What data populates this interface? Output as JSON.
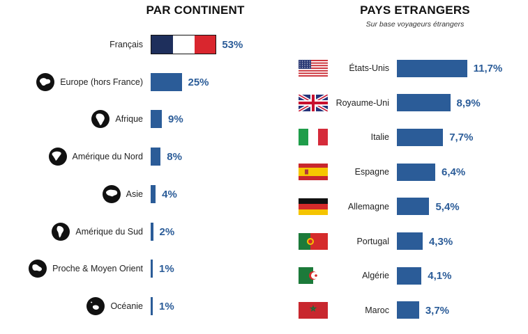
{
  "left": {
    "title": "PAR CONTINENT",
    "rows": [
      {
        "label": "Français",
        "value": 53,
        "value_text": "53%",
        "icon": "france-flag"
      },
      {
        "label": "Europe (hors France)",
        "value": 25,
        "value_text": "25%",
        "icon": "globe-europe-icon"
      },
      {
        "label": "Afrique",
        "value": 9,
        "value_text": "9%",
        "icon": "globe-africa-icon"
      },
      {
        "label": "Amérique du Nord",
        "value": 8,
        "value_text": "8%",
        "icon": "globe-north-america-icon"
      },
      {
        "label": "Asie",
        "value": 4,
        "value_text": "4%",
        "icon": "globe-asia-icon"
      },
      {
        "label": "Amérique du Sud",
        "value": 2,
        "value_text": "2%",
        "icon": "globe-south-america-icon"
      },
      {
        "label": "Proche & Moyen Orient",
        "value": 1,
        "value_text": "1%",
        "icon": "globe-middle-east-icon"
      },
      {
        "label": "Océanie",
        "value": 1,
        "value_text": "1%",
        "icon": "globe-oceania-icon"
      }
    ]
  },
  "right": {
    "title": "PAYS ETRANGERS",
    "subtitle": "Sur base voyageurs étrangers",
    "rows": [
      {
        "label": "États-Unis",
        "value": 11.7,
        "value_text": "11,7%",
        "icon": "usa-flag-icon"
      },
      {
        "label": "Royaume-Uni",
        "value": 8.9,
        "value_text": "8,9%",
        "icon": "uk-flag-icon"
      },
      {
        "label": "Italie",
        "value": 7.7,
        "value_text": "7,7%",
        "icon": "italy-flag-icon"
      },
      {
        "label": "Espagne",
        "value": 6.4,
        "value_text": "6,4%",
        "icon": "spain-flag-icon"
      },
      {
        "label": "Allemagne",
        "value": 5.4,
        "value_text": "5,4%",
        "icon": "germany-flag-icon"
      },
      {
        "label": "Portugal",
        "value": 4.3,
        "value_text": "4,3%",
        "icon": "portugal-flag-icon"
      },
      {
        "label": "Algérie",
        "value": 4.1,
        "value_text": "4,1%",
        "icon": "algeria-flag-icon"
      },
      {
        "label": "Maroc",
        "value": 3.7,
        "value_text": "3,7%",
        "icon": "morocco-flag-icon"
      }
    ]
  },
  "colors": {
    "bar": "#2b5c98",
    "value_text": "#2b5c98",
    "france_blue": "#1e2f5c",
    "france_white": "#ffffff",
    "france_red": "#d9262e"
  },
  "chart_data": [
    {
      "type": "bar",
      "orientation": "horizontal",
      "title": "PAR CONTINENT",
      "categories": [
        "Français",
        "Europe (hors France)",
        "Afrique",
        "Amérique du Nord",
        "Asie",
        "Amérique du Sud",
        "Proche & Moyen Orient",
        "Océanie"
      ],
      "values": [
        53,
        25,
        9,
        8,
        4,
        2,
        1,
        1
      ],
      "unit": "%",
      "grid": false
    },
    {
      "type": "bar",
      "orientation": "horizontal",
      "title": "PAYS ETRANGERS",
      "subtitle": "Sur base voyageurs étrangers",
      "categories": [
        "États-Unis",
        "Royaume-Uni",
        "Italie",
        "Espagne",
        "Allemagne",
        "Portugal",
        "Algérie",
        "Maroc"
      ],
      "values": [
        11.7,
        8.9,
        7.7,
        6.4,
        5.4,
        4.3,
        4.1,
        3.7
      ],
      "unit": "%",
      "grid": false
    }
  ]
}
